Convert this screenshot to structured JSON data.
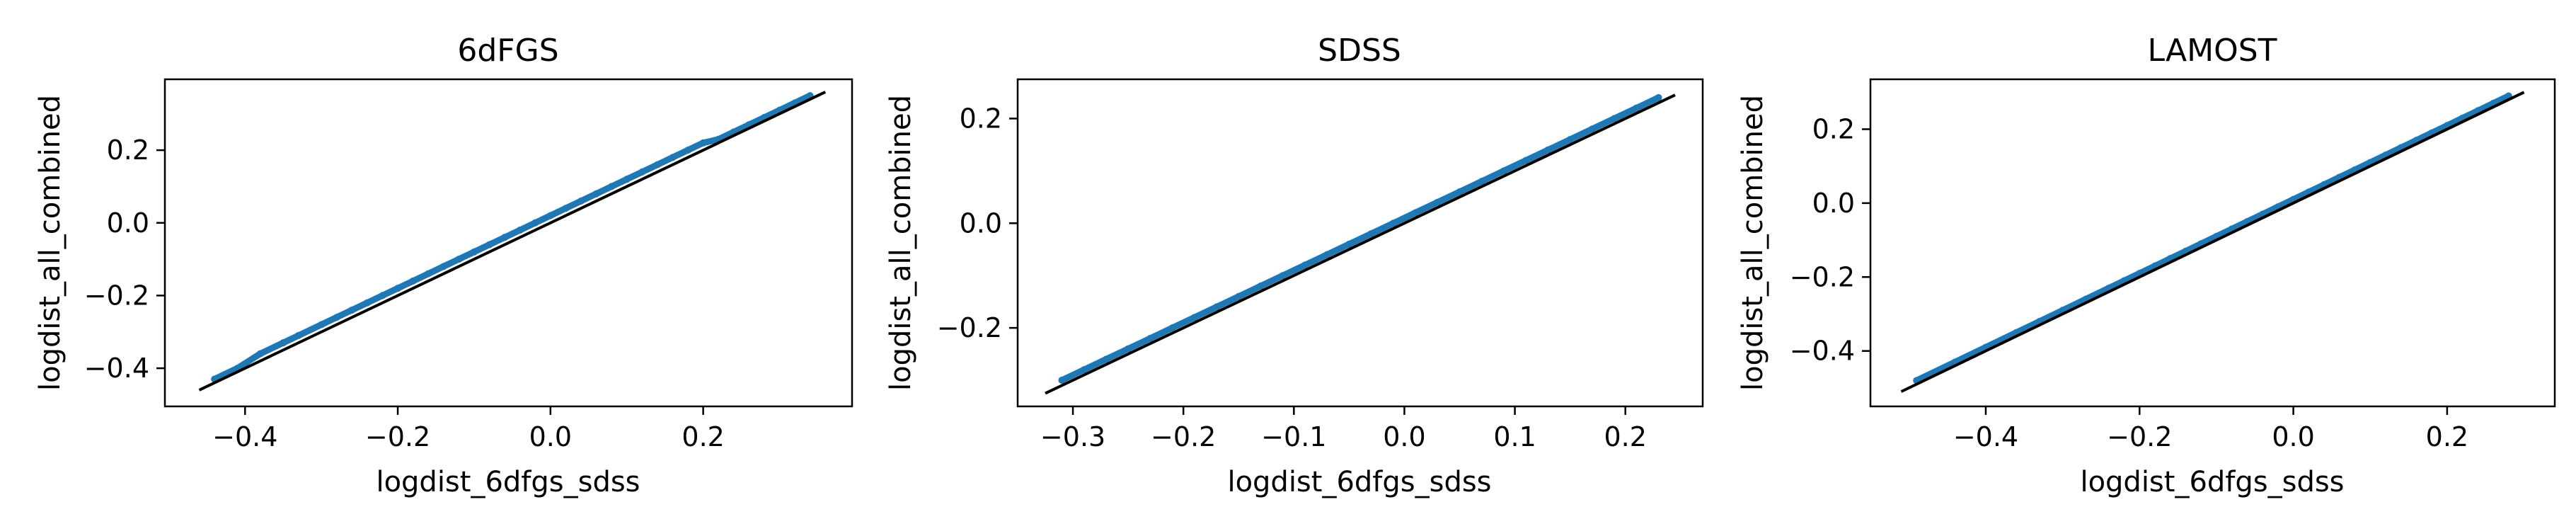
{
  "colors": {
    "scatter": "#1f77b4",
    "identity_line": "#000000",
    "axes": "#000000",
    "background": "#ffffff"
  },
  "chart_data": [
    {
      "type": "scatter",
      "title": "6dFGS",
      "xlabel": "logdist_6dfgs_sdss",
      "ylabel": "logdist_all_combined",
      "xlim": [
        -0.505,
        0.395
      ],
      "ylim": [
        -0.505,
        0.395
      ],
      "xticks": [
        -0.4,
        -0.2,
        0.0,
        0.2
      ],
      "xtick_labels": [
        "−0.4",
        "−0.2",
        "0.0",
        "0.2"
      ],
      "yticks": [
        -0.4,
        -0.2,
        0.0,
        0.2
      ],
      "ytick_labels": [
        "−0.4",
        "−0.2",
        "0.0",
        "0.2"
      ],
      "grid": false,
      "series": [
        {
          "kind": "points",
          "x": [
            -0.44,
            -0.41,
            -0.38,
            -0.35,
            -0.33,
            -0.3,
            -0.28,
            -0.26,
            -0.24,
            -0.22,
            -0.2,
            -0.18,
            -0.16,
            -0.14,
            -0.12,
            -0.1,
            -0.08,
            -0.06,
            -0.04,
            -0.02,
            0.0,
            0.02,
            0.04,
            0.06,
            0.08,
            0.1,
            0.12,
            0.14,
            0.16,
            0.18,
            0.2,
            0.22,
            0.24,
            0.26,
            0.28,
            0.3,
            0.32,
            0.34
          ],
          "y": [
            -0.43,
            -0.4,
            -0.36,
            -0.33,
            -0.31,
            -0.28,
            -0.26,
            -0.24,
            -0.22,
            -0.2,
            -0.18,
            -0.16,
            -0.14,
            -0.12,
            -0.1,
            -0.08,
            -0.06,
            -0.04,
            -0.02,
            0.0,
            0.02,
            0.04,
            0.06,
            0.08,
            0.1,
            0.12,
            0.14,
            0.16,
            0.18,
            0.2,
            0.22,
            0.23,
            0.25,
            0.27,
            0.29,
            0.31,
            0.33,
            0.35
          ]
        },
        {
          "kind": "identity-line",
          "x": [
            -0.46,
            0.36
          ],
          "y": [
            -0.46,
            0.36
          ]
        }
      ]
    },
    {
      "type": "scatter",
      "title": "SDSS",
      "xlabel": "logdist_6dfgs_sdss",
      "ylabel": "logdist_all_combined",
      "xlim": [
        -0.35,
        0.27
      ],
      "ylim": [
        -0.35,
        0.275
      ],
      "xticks": [
        -0.3,
        -0.2,
        -0.1,
        0.0,
        0.1,
        0.2
      ],
      "xtick_labels": [
        "−0.3",
        "−0.2",
        "−0.1",
        "0.0",
        "0.1",
        "0.2"
      ],
      "yticks": [
        -0.2,
        0.0,
        0.2
      ],
      "ytick_labels": [
        "−0.2",
        "0.0",
        "0.2"
      ],
      "grid": false,
      "series": [
        {
          "kind": "points",
          "x": [
            -0.31,
            -0.29,
            -0.27,
            -0.25,
            -0.23,
            -0.21,
            -0.19,
            -0.17,
            -0.15,
            -0.13,
            -0.11,
            -0.09,
            -0.07,
            -0.05,
            -0.03,
            -0.01,
            0.01,
            0.03,
            0.05,
            0.07,
            0.09,
            0.11,
            0.13,
            0.15,
            0.17,
            0.19,
            0.21,
            0.23
          ],
          "y": [
            -0.3,
            -0.28,
            -0.26,
            -0.24,
            -0.22,
            -0.2,
            -0.18,
            -0.16,
            -0.14,
            -0.12,
            -0.1,
            -0.08,
            -0.06,
            -0.04,
            -0.02,
            0.0,
            0.02,
            0.04,
            0.06,
            0.08,
            0.1,
            0.12,
            0.14,
            0.16,
            0.18,
            0.2,
            0.22,
            0.24
          ]
        },
        {
          "kind": "identity-line",
          "x": [
            -0.325,
            0.245
          ],
          "y": [
            -0.325,
            0.245
          ]
        }
      ]
    },
    {
      "type": "scatter",
      "title": "LAMOST",
      "xlabel": "logdist_6dfgs_sdss",
      "ylabel": "logdist_all_combined",
      "xlim": [
        -0.55,
        0.34
      ],
      "ylim": [
        -0.55,
        0.335
      ],
      "xticks": [
        -0.4,
        -0.2,
        0.0,
        0.2
      ],
      "xtick_labels": [
        "−0.4",
        "−0.2",
        "0.0",
        "0.2"
      ],
      "yticks": [
        -0.4,
        -0.2,
        0.0,
        0.2
      ],
      "ytick_labels": [
        "−0.4",
        "−0.2",
        "0.0",
        "0.2"
      ],
      "grid": false,
      "series": [
        {
          "kind": "points",
          "x": [
            -0.49,
            -0.44,
            -0.4,
            -0.36,
            -0.33,
            -0.3,
            -0.27,
            -0.24,
            -0.22,
            -0.2,
            -0.18,
            -0.16,
            -0.14,
            -0.12,
            -0.1,
            -0.08,
            -0.06,
            -0.04,
            -0.02,
            0.0,
            0.02,
            0.04,
            0.06,
            0.08,
            0.1,
            0.12,
            0.14,
            0.16,
            0.18,
            0.2,
            0.22,
            0.24,
            0.26,
            0.28
          ],
          "y": [
            -0.48,
            -0.43,
            -0.39,
            -0.35,
            -0.32,
            -0.29,
            -0.26,
            -0.23,
            -0.21,
            -0.19,
            -0.17,
            -0.15,
            -0.13,
            -0.11,
            -0.09,
            -0.07,
            -0.05,
            -0.03,
            -0.01,
            0.01,
            0.03,
            0.05,
            0.07,
            0.09,
            0.11,
            0.13,
            0.15,
            0.17,
            0.19,
            0.21,
            0.23,
            0.25,
            0.27,
            0.29
          ]
        },
        {
          "kind": "identity-line",
          "x": [
            -0.51,
            0.3
          ],
          "y": [
            -0.51,
            0.3
          ]
        }
      ]
    }
  ]
}
